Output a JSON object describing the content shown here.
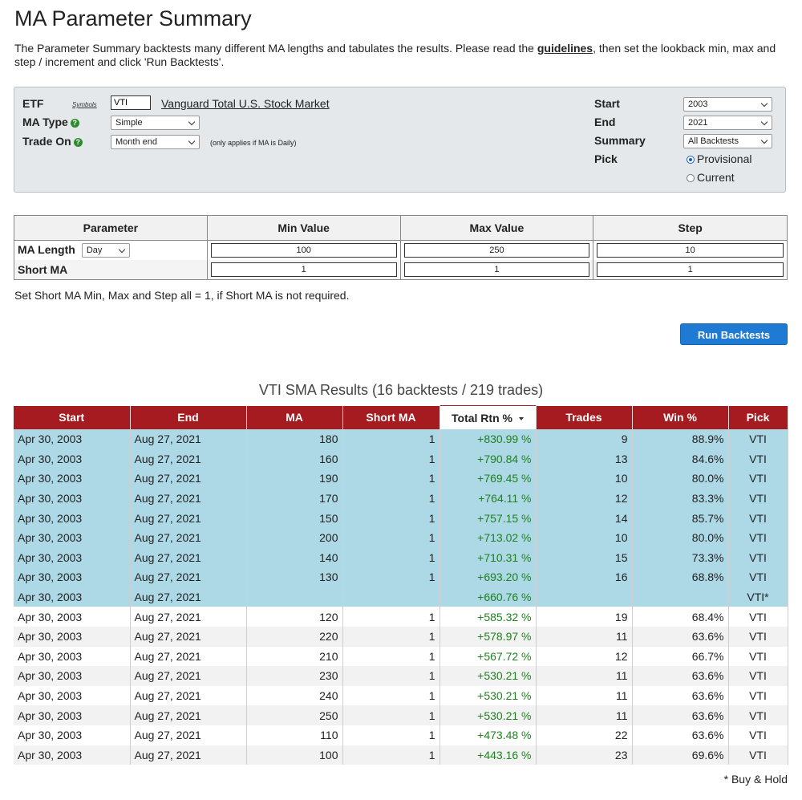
{
  "page": {
    "title": "MA Parameter Summary",
    "intro_pre": "The Parameter Summary backtests many different MA lengths and tabulates the results.  Please read the ",
    "intro_link": "guidelines",
    "intro_post": ", then set the lookback min, max and step / increment and click 'Run Backtests'."
  },
  "form": {
    "etf_label": "ETF",
    "symbols_link": "Symbols",
    "etf_value": "VTI",
    "etf_name": "Vanguard Total U.S. Stock Market",
    "ma_type_label": "MA Type",
    "ma_type_value": "Simple",
    "trade_on_label": "Trade On",
    "trade_on_value": "Month end",
    "trade_on_note": "(only applies if MA is Daily)",
    "start_label": "Start",
    "start_value": "2003",
    "end_label": "End",
    "end_value": "2021",
    "summary_label": "Summary",
    "summary_value": "All Backtests",
    "pick_label": "Pick",
    "pick_provisional": "Provisional",
    "pick_current": "Current",
    "help_glyph": "?"
  },
  "params": {
    "headers": [
      "Parameter",
      "Min Value",
      "Max Value",
      "Step"
    ],
    "ma_length_label": "MA Length",
    "ma_length_unit": "Day",
    "ma_length_min": "100",
    "ma_length_max": "250",
    "ma_length_step": "10",
    "short_ma_label": "Short MA",
    "short_ma_min": "1",
    "short_ma_max": "1",
    "short_ma_step": "1",
    "hint": "Set Short MA Min, Max and Step all = 1, if Short MA is not required.",
    "run_button": "Run Backtests"
  },
  "results": {
    "title": "VTI SMA Results (16 backtests / 219 trades)",
    "columns": [
      "Start",
      "End",
      "MA",
      "Short MA",
      "Total Rtn %",
      "Trades",
      "Win %",
      "Pick"
    ],
    "rows": [
      {
        "start": "Apr 30, 2003",
        "end": "Aug 27, 2021",
        "ma": "180",
        "short_ma": "1",
        "total_rtn": "+830.99 %",
        "trades": "9",
        "win": "88.9%",
        "pick": "VTI",
        "style": "hl"
      },
      {
        "start": "Apr 30, 2003",
        "end": "Aug 27, 2021",
        "ma": "160",
        "short_ma": "1",
        "total_rtn": "+790.84 %",
        "trades": "13",
        "win": "84.6%",
        "pick": "VTI",
        "style": "hl"
      },
      {
        "start": "Apr 30, 2003",
        "end": "Aug 27, 2021",
        "ma": "190",
        "short_ma": "1",
        "total_rtn": "+769.45 %",
        "trades": "10",
        "win": "80.0%",
        "pick": "VTI",
        "style": "hl"
      },
      {
        "start": "Apr 30, 2003",
        "end": "Aug 27, 2021",
        "ma": "170",
        "short_ma": "1",
        "total_rtn": "+764.11 %",
        "trades": "12",
        "win": "83.3%",
        "pick": "VTI",
        "style": "hl"
      },
      {
        "start": "Apr 30, 2003",
        "end": "Aug 27, 2021",
        "ma": "150",
        "short_ma": "1",
        "total_rtn": "+757.15 %",
        "trades": "14",
        "win": "85.7%",
        "pick": "VTI",
        "style": "hl"
      },
      {
        "start": "Apr 30, 2003",
        "end": "Aug 27, 2021",
        "ma": "200",
        "short_ma": "1",
        "total_rtn": "+713.02 %",
        "trades": "10",
        "win": "80.0%",
        "pick": "VTI",
        "style": "hl"
      },
      {
        "start": "Apr 30, 2003",
        "end": "Aug 27, 2021",
        "ma": "140",
        "short_ma": "1",
        "total_rtn": "+710.31 %",
        "trades": "15",
        "win": "73.3%",
        "pick": "VTI",
        "style": "hl"
      },
      {
        "start": "Apr 30, 2003",
        "end": "Aug 27, 2021",
        "ma": "130",
        "short_ma": "1",
        "total_rtn": "+693.20 %",
        "trades": "16",
        "win": "68.8%",
        "pick": "VTI",
        "style": "hl"
      },
      {
        "start": "Apr 30, 2003",
        "end": "Aug 27, 2021",
        "ma": "",
        "short_ma": "",
        "total_rtn": "+660.76 %",
        "trades": "",
        "win": "",
        "pick": "VTI*",
        "style": "hl"
      },
      {
        "start": "Apr 30, 2003",
        "end": "Aug 27, 2021",
        "ma": "120",
        "short_ma": "1",
        "total_rtn": "+585.32 %",
        "trades": "19",
        "win": "68.4%",
        "pick": "VTI",
        "style": "wh"
      },
      {
        "start": "Apr 30, 2003",
        "end": "Aug 27, 2021",
        "ma": "220",
        "short_ma": "1",
        "total_rtn": "+578.97 %",
        "trades": "11",
        "win": "63.6%",
        "pick": "VTI",
        "style": "gr"
      },
      {
        "start": "Apr 30, 2003",
        "end": "Aug 27, 2021",
        "ma": "210",
        "short_ma": "1",
        "total_rtn": "+567.72 %",
        "trades": "12",
        "win": "66.7%",
        "pick": "VTI",
        "style": "wh"
      },
      {
        "start": "Apr 30, 2003",
        "end": "Aug 27, 2021",
        "ma": "230",
        "short_ma": "1",
        "total_rtn": "+530.21 %",
        "trades": "11",
        "win": "63.6%",
        "pick": "VTI",
        "style": "gr"
      },
      {
        "start": "Apr 30, 2003",
        "end": "Aug 27, 2021",
        "ma": "240",
        "short_ma": "1",
        "total_rtn": "+530.21 %",
        "trades": "11",
        "win": "63.6%",
        "pick": "VTI",
        "style": "wh"
      },
      {
        "start": "Apr 30, 2003",
        "end": "Aug 27, 2021",
        "ma": "250",
        "short_ma": "1",
        "total_rtn": "+530.21 %",
        "trades": "11",
        "win": "63.6%",
        "pick": "VTI",
        "style": "gr"
      },
      {
        "start": "Apr 30, 2003",
        "end": "Aug 27, 2021",
        "ma": "110",
        "short_ma": "1",
        "total_rtn": "+473.48 %",
        "trades": "22",
        "win": "63.6%",
        "pick": "VTI",
        "style": "wh"
      },
      {
        "start": "Apr 30, 2003",
        "end": "Aug 27, 2021",
        "ma": "100",
        "short_ma": "1",
        "total_rtn": "+443.16 %",
        "trades": "23",
        "win": "69.6%",
        "pick": "VTI",
        "style": "gr"
      }
    ],
    "footnote": "* Buy & Hold"
  },
  "colors": {
    "header_red": "#a51b1f",
    "highlight_blue": "#add8e6",
    "positive_green": "#208020",
    "button_blue": "#1f7ad4"
  }
}
